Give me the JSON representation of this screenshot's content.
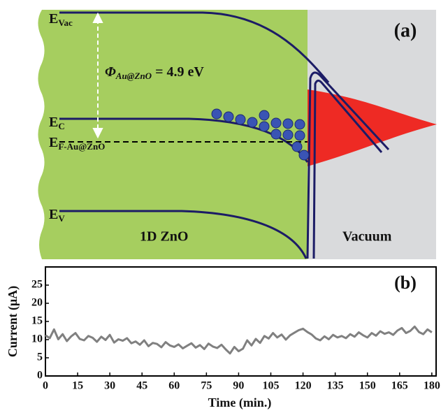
{
  "diagram": {
    "panel_label": "(a)",
    "labels": [
      {
        "text": "E",
        "sub": "Vac"
      },
      {
        "text": "E",
        "sub": "C"
      },
      {
        "text": "E",
        "sub": "F-Au@ZnO"
      },
      {
        "text": "E",
        "sub": "V"
      }
    ],
    "work_function": {
      "symbol": "Φ",
      "sub": "Au@ZnO",
      "text": "= 4.9 eV"
    },
    "region_left": "1D ZnO",
    "region_right": "Vacuum"
  },
  "chart_data": {
    "type": "line",
    "annotation": "(b)",
    "x_label": "Time (min.)",
    "y_label": "Current (μA)",
    "color": "#808080",
    "x": [
      0,
      2,
      4,
      6,
      8,
      10,
      12,
      14,
      16,
      18,
      20,
      22,
      24,
      26,
      28,
      30,
      32,
      34,
      36,
      38,
      40,
      42,
      44,
      46,
      48,
      50,
      52,
      54,
      56,
      58,
      60,
      62,
      64,
      66,
      68,
      70,
      72,
      74,
      76,
      78,
      80,
      82,
      84,
      86,
      88,
      90,
      92,
      94,
      96,
      98,
      100,
      102,
      104,
      106,
      108,
      110,
      112,
      114,
      116,
      118,
      120,
      122,
      124,
      126,
      128,
      130,
      132,
      134,
      136,
      138,
      140,
      142,
      144,
      146,
      148,
      150,
      152,
      154,
      156,
      158,
      160,
      162,
      164,
      166,
      168,
      170,
      172,
      174,
      176,
      178,
      180
    ],
    "values": [
      11.2,
      10.4,
      12.8,
      10.1,
      11.5,
      9.6,
      10.9,
      11.8,
      10.2,
      9.8,
      11.0,
      10.5,
      9.4,
      10.8,
      9.9,
      11.3,
      9.2,
      10.1,
      9.7,
      10.4,
      9.0,
      9.5,
      8.6,
      9.8,
      8.2,
      9.1,
      8.8,
      7.9,
      9.3,
      8.4,
      8.0,
      8.7,
      7.6,
      8.3,
      9.0,
      7.8,
      8.5,
      7.4,
      8.9,
      8.1,
      7.7,
      8.6,
      7.3,
      6.2,
      8.0,
      6.8,
      7.5,
      9.8,
      8.4,
      10.2,
      9.1,
      11.0,
      10.3,
      11.8,
      10.6,
      11.4,
      10.0,
      11.2,
      11.9,
      12.6,
      13.0,
      12.1,
      11.4,
      10.3,
      9.8,
      10.9,
      10.1,
      11.3,
      10.6,
      11.0,
      10.4,
      11.5,
      10.8,
      12.0,
      11.2,
      10.6,
      11.8,
      11.1,
      12.3,
      11.6,
      12.0,
      11.3,
      12.5,
      13.2,
      11.8,
      12.4,
      13.6,
      12.1,
      11.5,
      12.8,
      12.0
    ],
    "xlim": [
      0,
      182
    ],
    "ylim": [
      0,
      30
    ],
    "xticks": [
      0,
      15,
      30,
      45,
      60,
      75,
      90,
      105,
      120,
      135,
      150,
      165,
      180
    ],
    "yticks": [
      0,
      5,
      10,
      15,
      20,
      25
    ]
  }
}
